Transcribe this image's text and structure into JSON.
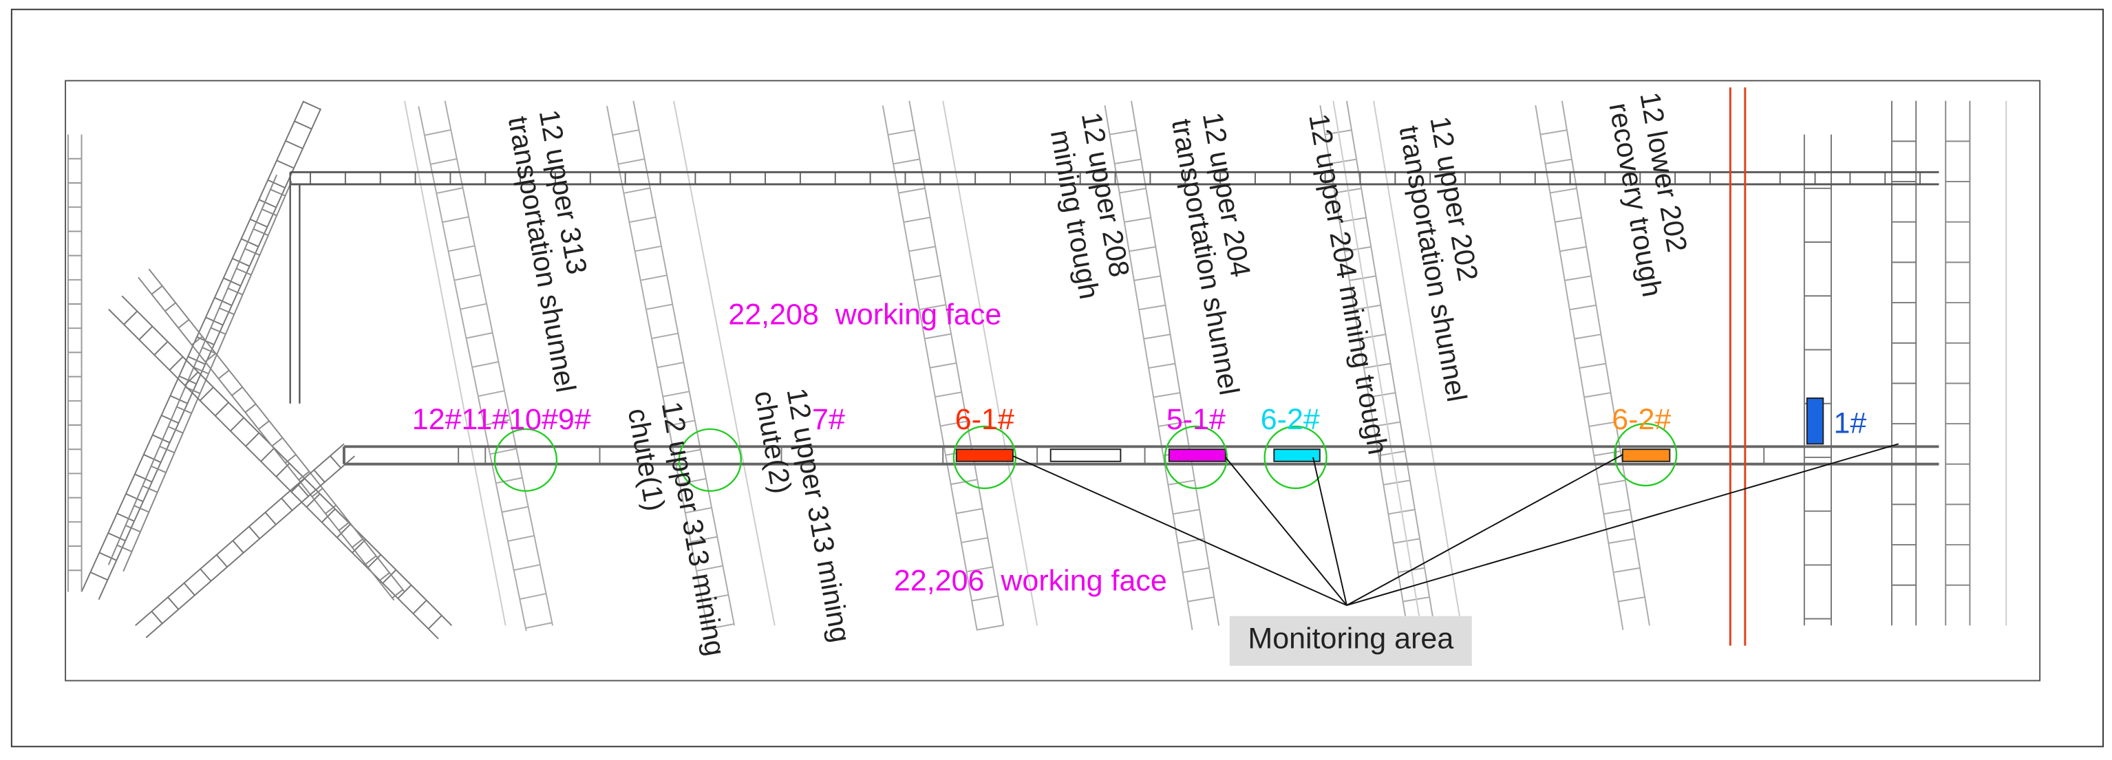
{
  "tunnels": [
    {
      "lines": [
        "12 upper 313",
        "transportation shunnel"
      ]
    },
    {
      "lines": [
        "12 upper 208",
        "mining trough"
      ]
    },
    {
      "lines": [
        "12 upper 204",
        "transportation shunnel"
      ]
    },
    {
      "lines": [
        "12 upper 204 mining trough"
      ]
    },
    {
      "lines": [
        "12 upper 202",
        "transportation shunnel"
      ]
    },
    {
      "lines": [
        "12 lower 202",
        "recovery trough"
      ]
    },
    {
      "lines": [
        "12 upper 313 mining",
        "chute(1)"
      ]
    },
    {
      "lines": [
        "12 upper 313 mining",
        "chute(2)"
      ]
    }
  ],
  "points": [
    "12#11#10#9#",
    "7#",
    "6-1#",
    "5-1#",
    "6-2#",
    "6-2#",
    "1#"
  ],
  "faces": [
    "22,208  working face",
    "22,206  working face"
  ],
  "monitoring_area": "Monitoring area"
}
